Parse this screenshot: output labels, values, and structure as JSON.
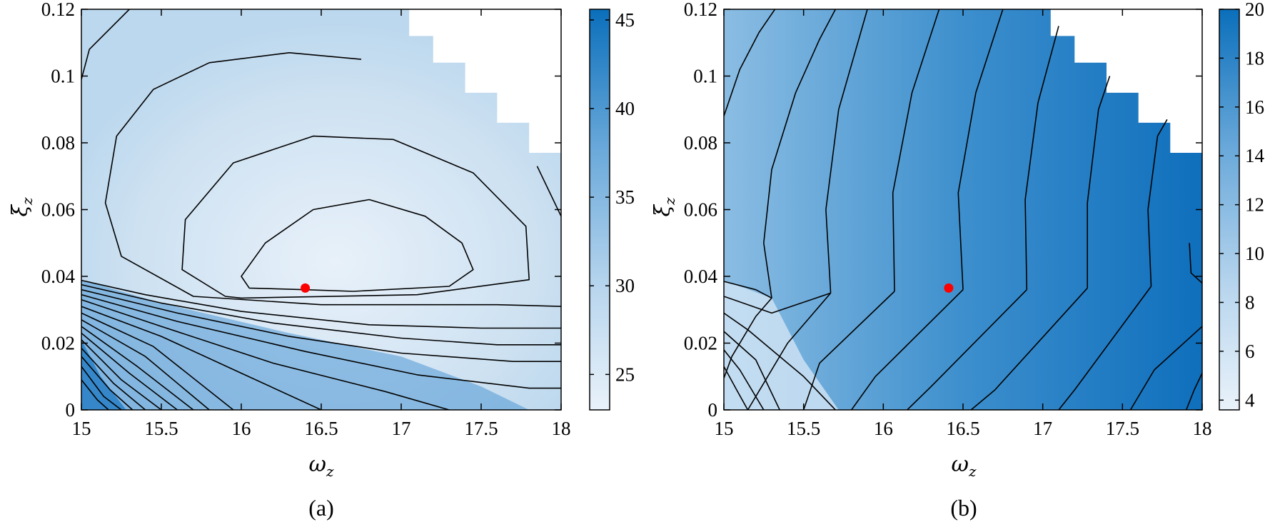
{
  "chart_data": [
    {
      "type": "contour",
      "panel_label": "(a)",
      "xlabel": "ω",
      "xlabel_sub": "z",
      "ylabel": "ξ",
      "ylabel_sub": "z",
      "xlim": [
        15,
        18
      ],
      "ylim": [
        0,
        0.12
      ],
      "xticks": [
        "15",
        "15.5",
        "16",
        "16.5",
        "17",
        "17.5",
        "18"
      ],
      "yticks": [
        "0",
        "0.02",
        "0.04",
        "0.06",
        "0.08",
        "0.1",
        "0.12"
      ],
      "colorbar": {
        "range": [
          23,
          45.6
        ],
        "ticks": [
          "25",
          "30",
          "35",
          "40",
          "45"
        ],
        "colors": [
          "#e9f2fa",
          "#0b6fbb"
        ]
      },
      "optimum_marker": {
        "x": 16.4,
        "y": 0.0365,
        "color": "#ff0000"
      },
      "infeasible_region": [
        [
          16.9,
          0.12
        ],
        [
          17.05,
          0.112
        ],
        [
          17.2,
          0.104
        ],
        [
          17.4,
          0.095
        ],
        [
          17.6,
          0.086
        ],
        [
          17.8,
          0.077
        ],
        [
          18,
          0.068
        ],
        [
          18,
          0.12
        ]
      ],
      "contours": [
        [
          [
            16.7,
            0.0355
          ],
          [
            17.3,
            0.037
          ],
          [
            17.45,
            0.042
          ],
          [
            17.38,
            0.05
          ],
          [
            17.15,
            0.058
          ],
          [
            16.8,
            0.063
          ],
          [
            16.45,
            0.06
          ],
          [
            16.15,
            0.05
          ],
          [
            16.0,
            0.04
          ],
          [
            16.05,
            0.0365
          ],
          [
            16.4,
            0.036
          ],
          [
            16.7,
            0.0355
          ]
        ],
        [
          [
            16.0,
            0.0335
          ],
          [
            17.1,
            0.0345
          ],
          [
            17.8,
            0.039
          ],
          [
            17.78,
            0.055
          ],
          [
            17.45,
            0.071
          ],
          [
            16.95,
            0.081
          ],
          [
            16.45,
            0.082
          ],
          [
            15.95,
            0.074
          ],
          [
            15.65,
            0.057
          ],
          [
            15.63,
            0.042
          ],
          [
            15.9,
            0.034
          ],
          [
            16.0,
            0.0335
          ]
        ],
        [
          [
            18,
            0.031
          ],
          [
            17.6,
            0.0315
          ],
          [
            16.5,
            0.0315
          ],
          [
            15.7,
            0.034
          ],
          [
            15.25,
            0.046
          ],
          [
            15.15,
            0.062
          ],
          [
            15.22,
            0.082
          ],
          [
            15.45,
            0.096
          ],
          [
            15.8,
            0.104
          ],
          [
            16.3,
            0.107
          ],
          [
            16.75,
            0.105
          ]
        ],
        [
          [
            18,
            0.058
          ],
          [
            17.85,
            0.073
          ]
        ],
        [
          [
            15.0,
            0.099
          ],
          [
            15.05,
            0.108
          ],
          [
            15.3,
            0.12
          ]
        ],
        [
          [
            15.0,
            0.0388
          ],
          [
            15.4,
            0.0345
          ],
          [
            16.0,
            0.0295
          ],
          [
            16.8,
            0.0255
          ],
          [
            17.5,
            0.0245
          ],
          [
            18,
            0.0245
          ]
        ],
        [
          [
            15.0,
            0.0375
          ],
          [
            15.5,
            0.032
          ],
          [
            16.2,
            0.026
          ],
          [
            17.0,
            0.0215
          ],
          [
            17.6,
            0.0195
          ],
          [
            18,
            0.0195
          ]
        ],
        [
          [
            15.0,
            0.036
          ],
          [
            15.6,
            0.029
          ],
          [
            16.3,
            0.022
          ],
          [
            17.0,
            0.017
          ],
          [
            17.7,
            0.0145
          ],
          [
            18,
            0.0145
          ]
        ],
        [
          [
            15.0,
            0.0345
          ],
          [
            15.6,
            0.0265
          ],
          [
            16.4,
            0.0175
          ],
          [
            17.1,
            0.0105
          ],
          [
            17.8,
            0.0065
          ],
          [
            18,
            0.0065
          ]
        ],
        [
          [
            15.0,
            0.033
          ],
          [
            15.5,
            0.025
          ],
          [
            16.2,
            0.014
          ],
          [
            16.9,
            0.0055
          ],
          [
            17.3,
            0.0
          ]
        ],
        [
          [
            15.0,
            0.031
          ],
          [
            15.5,
            0.022
          ],
          [
            16.0,
            0.011
          ],
          [
            16.5,
            0.0
          ]
        ],
        [
          [
            15.0,
            0.029
          ],
          [
            15.45,
            0.019
          ],
          [
            15.95,
            0.0
          ]
        ],
        [
          [
            15.0,
            0.027
          ],
          [
            15.4,
            0.016
          ],
          [
            15.8,
            0.0
          ]
        ],
        [
          [
            15.0,
            0.025
          ],
          [
            15.35,
            0.013
          ],
          [
            15.7,
            0.0
          ]
        ],
        [
          [
            15.0,
            0.023
          ],
          [
            15.3,
            0.011
          ],
          [
            15.6,
            0.0
          ]
        ],
        [
          [
            15.0,
            0.021
          ],
          [
            15.25,
            0.009
          ],
          [
            15.5,
            0.0
          ]
        ],
        [
          [
            15.0,
            0.0185
          ],
          [
            15.2,
            0.008
          ],
          [
            15.4,
            0.0
          ]
        ],
        [
          [
            15.0,
            0.016
          ],
          [
            15.18,
            0.006
          ],
          [
            15.32,
            0.0
          ]
        ],
        [
          [
            15.0,
            0.013
          ],
          [
            15.14,
            0.004
          ],
          [
            15.25,
            0.0
          ]
        ],
        [
          [
            15.0,
            0.009
          ],
          [
            15.1,
            0.003
          ],
          [
            15.17,
            0.0
          ]
        ]
      ]
    },
    {
      "type": "contour",
      "panel_label": "(b)",
      "xlabel": "ω",
      "xlabel_sub": "z",
      "ylabel": "ξ",
      "ylabel_sub": "z",
      "xlim": [
        15,
        18
      ],
      "ylim": [
        0,
        0.12
      ],
      "xticks": [
        "15",
        "15.5",
        "16",
        "16.5",
        "17",
        "17.5",
        "18"
      ],
      "yticks": [
        "0",
        "0.02",
        "0.04",
        "0.06",
        "0.08",
        "0.1",
        "0.12"
      ],
      "colorbar": {
        "range": [
          3.6,
          20
        ],
        "ticks": [
          "4",
          "6",
          "8",
          "10",
          "12",
          "14",
          "16",
          "18",
          "20"
        ],
        "colors": [
          "#e9f2fa",
          "#0b6fbb"
        ]
      },
      "optimum_marker": {
        "x": 16.41,
        "y": 0.0365,
        "color": "#ff0000"
      },
      "infeasible_region": [
        [
          16.9,
          0.12
        ],
        [
          17.05,
          0.112
        ],
        [
          17.2,
          0.104
        ],
        [
          17.4,
          0.095
        ],
        [
          17.6,
          0.086
        ],
        [
          17.8,
          0.077
        ],
        [
          18,
          0.068
        ],
        [
          18,
          0.12
        ]
      ],
      "contours": [
        [
          [
            15.0,
            0.088
          ],
          [
            15.1,
            0.102
          ],
          [
            15.22,
            0.113
          ],
          [
            15.32,
            0.12
          ]
        ],
        [
          [
            15.3,
            0.0335
          ],
          [
            15.25,
            0.05
          ],
          [
            15.3,
            0.072
          ],
          [
            15.45,
            0.095
          ],
          [
            15.6,
            0.111
          ],
          [
            15.7,
            0.12
          ]
        ],
        [
          [
            15.3,
            0.0335
          ],
          [
            15.2,
            0.028
          ],
          [
            15.05,
            0.016
          ],
          [
            15.0,
            0.0095
          ]
        ],
        [
          [
            15.67,
            0.035
          ],
          [
            15.64,
            0.06
          ],
          [
            15.72,
            0.09
          ],
          [
            15.9,
            0.12
          ]
        ],
        [
          [
            15.67,
            0.035
          ],
          [
            15.4,
            0.02
          ],
          [
            15.15,
            0.0
          ]
        ],
        [
          [
            16.07,
            0.0355
          ],
          [
            16.06,
            0.065
          ],
          [
            16.18,
            0.095
          ],
          [
            16.35,
            0.12
          ]
        ],
        [
          [
            16.07,
            0.0355
          ],
          [
            15.6,
            0.014
          ],
          [
            15.5,
            0.0
          ]
        ],
        [
          [
            16.5,
            0.036
          ],
          [
            16.47,
            0.065
          ],
          [
            16.58,
            0.095
          ],
          [
            16.75,
            0.12
          ]
        ],
        [
          [
            16.5,
            0.036
          ],
          [
            15.95,
            0.01
          ],
          [
            15.8,
            0.0
          ]
        ],
        [
          [
            16.9,
            0.036
          ],
          [
            16.89,
            0.063
          ],
          [
            16.97,
            0.092
          ],
          [
            17.1,
            0.115
          ]
        ],
        [
          [
            16.9,
            0.036
          ],
          [
            16.3,
            0.007
          ],
          [
            16.15,
            0.0
          ]
        ],
        [
          [
            17.28,
            0.0365
          ],
          [
            17.28,
            0.062
          ],
          [
            17.35,
            0.09
          ],
          [
            17.42,
            0.1
          ]
        ],
        [
          [
            17.28,
            0.0365
          ],
          [
            16.7,
            0.006
          ],
          [
            16.55,
            0.0
          ]
        ],
        [
          [
            17.68,
            0.037
          ],
          [
            17.66,
            0.06
          ],
          [
            17.72,
            0.082
          ],
          [
            17.78,
            0.087
          ]
        ],
        [
          [
            17.68,
            0.037
          ],
          [
            17.2,
            0.006
          ],
          [
            17.1,
            0.0
          ]
        ],
        [
          [
            18,
            0.038
          ],
          [
            17.93,
            0.041
          ],
          [
            17.92,
            0.05
          ]
        ],
        [
          [
            18,
            0.025
          ],
          [
            17.7,
            0.012
          ],
          [
            17.55,
            0.0
          ]
        ],
        [
          [
            18,
            0.011
          ],
          [
            17.95,
            0.006
          ],
          [
            17.9,
            0.0
          ]
        ],
        [
          [
            15.0,
            0.0385
          ],
          [
            15.2,
            0.036
          ],
          [
            15.3,
            0.0335
          ]
        ],
        [
          [
            15.0,
            0.034
          ],
          [
            15.3,
            0.029
          ],
          [
            15.67,
            0.035
          ]
        ],
        [
          [
            15.0,
            0.029
          ],
          [
            15.15,
            0.024
          ],
          [
            15.3,
            0.018
          ],
          [
            15.5,
            0.01
          ],
          [
            15.7,
            0.0
          ]
        ],
        [
          [
            15.0,
            0.0235
          ],
          [
            15.2,
            0.015
          ],
          [
            15.35,
            0.0
          ]
        ],
        [
          [
            15.0,
            0.018
          ],
          [
            15.1,
            0.012
          ],
          [
            15.25,
            0.0
          ]
        ],
        [
          [
            15.0,
            0.013
          ],
          [
            15.08,
            0.006
          ],
          [
            15.15,
            0.0
          ]
        ]
      ]
    }
  ]
}
